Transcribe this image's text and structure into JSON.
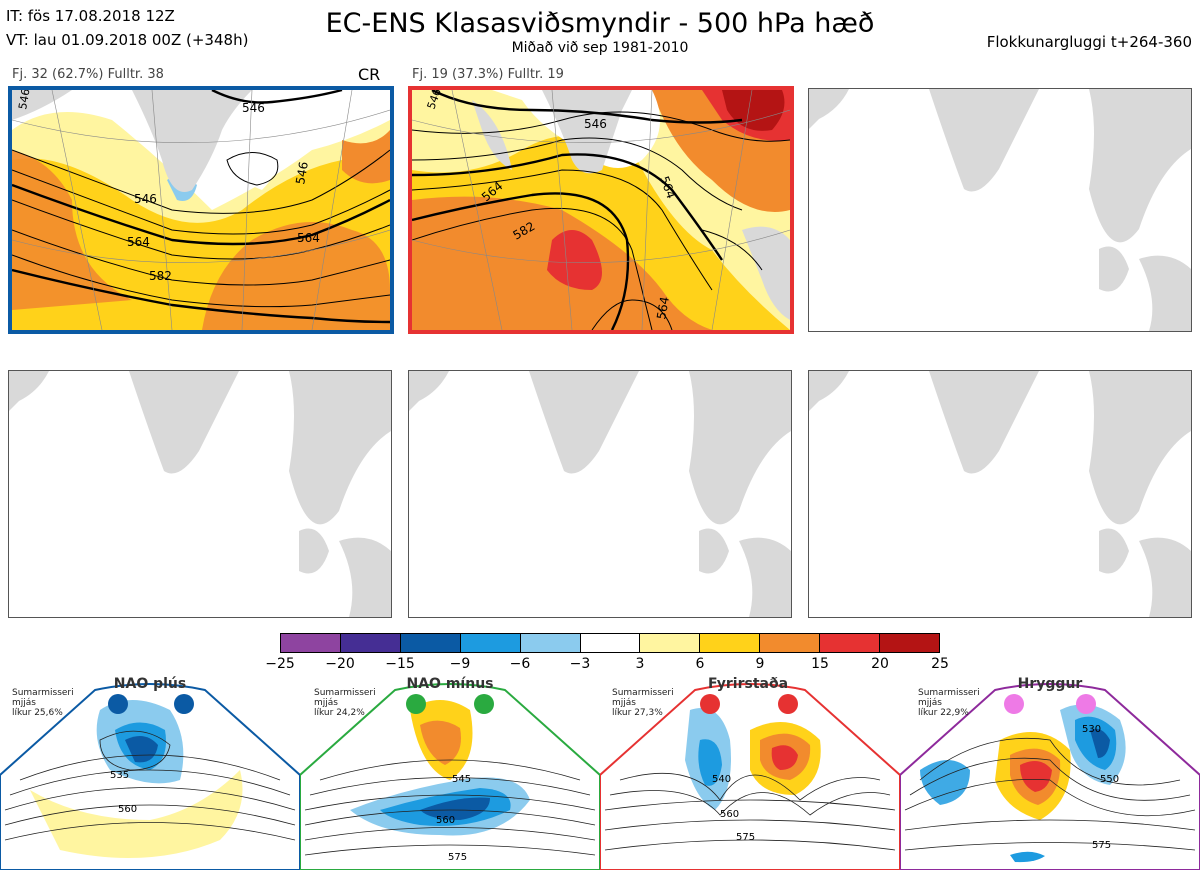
{
  "header": {
    "it_line": "IT: fös 17.08.2018 12Z",
    "vt_line": "VT: lau 01.09.2018 00Z  (+348h)",
    "title": "EC-ENS Klasasviðsmyndir - 500 hPa hæð",
    "subtitle": "Miðað við sep 1981-2010",
    "window": "Flokkunargluggi t+264-360"
  },
  "panels": [
    {
      "label": "Fj. 32 (62.7%)   Fulltr. 38",
      "regime_code": "CR",
      "border_color": "#0b5aa4",
      "contour_labels": [
        "546",
        "546",
        "546",
        "564",
        "564",
        "582",
        "546"
      ]
    },
    {
      "label": "Fj. 19 (37.3%)   Fulltr. 19",
      "border_color": "#e63232",
      "contour_labels": [
        "546",
        "546",
        "564",
        "564",
        "582",
        "564"
      ]
    }
  ],
  "colorbar": {
    "ticks": [
      "−25",
      "−20",
      "−15",
      "−9",
      "−6",
      "−3",
      "3",
      "6",
      "9",
      "15",
      "20",
      "25"
    ],
    "colors": [
      "#8e44a0",
      "#452e94",
      "#0b5aa4",
      "#1d9be0",
      "#8bcbee",
      "#ffffff",
      "#fff5a0",
      "#ffd21a",
      "#f28b2d",
      "#e63232",
      "#b41414"
    ]
  },
  "regimes": [
    {
      "name": "NAO plús",
      "note": [
        "Sumarmisseri",
        "mjjás",
        "líkur 25,6%"
      ],
      "color": "#0b5aa4",
      "contour_labels": [
        "535",
        "560"
      ]
    },
    {
      "name": "NAO mínus",
      "note": [
        "Sumarmisseri",
        "mjjás",
        "líkur 24,2%"
      ],
      "color": "#2aaa40",
      "contour_labels": [
        "545",
        "560",
        "575"
      ]
    },
    {
      "name": "Fyrirstaða",
      "note": [
        "Sumarmisseri",
        "mjjás",
        "líkur 27,3%"
      ],
      "color": "#e63232",
      "contour_labels": [
        "540",
        "560",
        "575"
      ]
    },
    {
      "name": "Hryggur",
      "note": [
        "Sumarmisseri",
        "mjjás",
        "líkur 22,9%"
      ],
      "color": "#8e2a9c",
      "contour_labels": [
        "530",
        "550",
        "575"
      ]
    }
  ]
}
